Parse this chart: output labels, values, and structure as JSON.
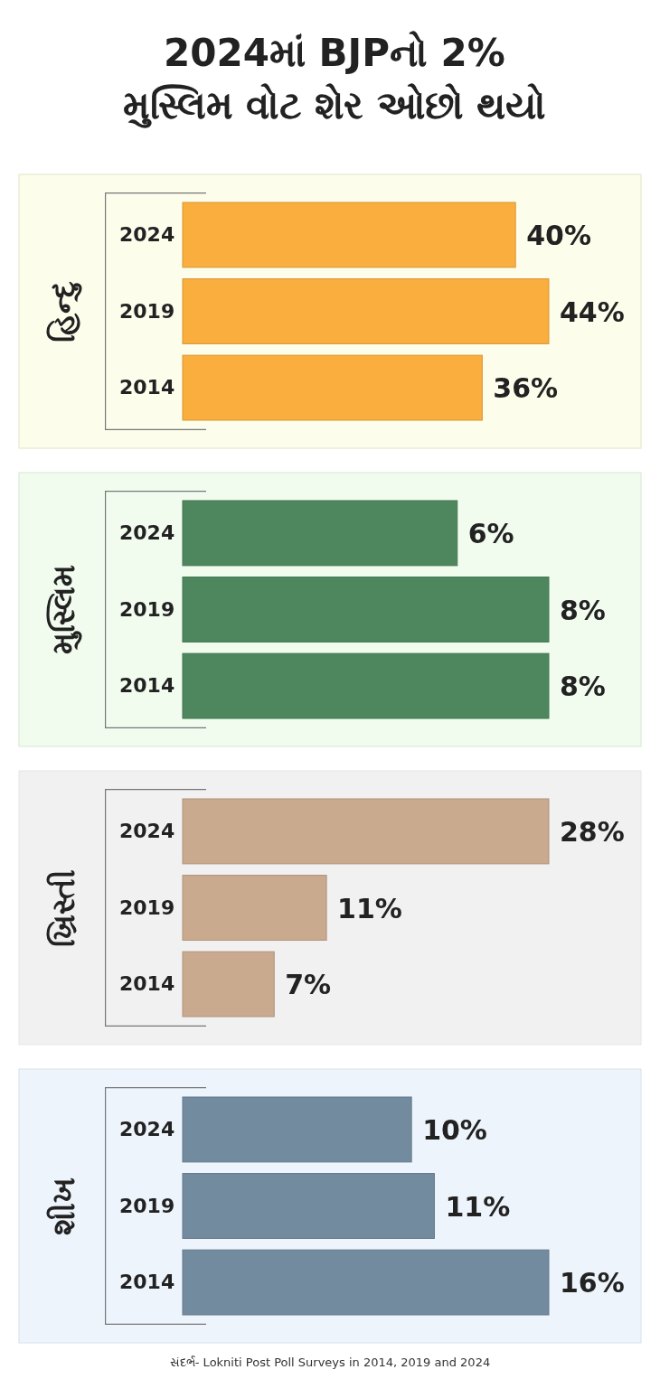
{
  "chart_data": [
    {
      "type": "bar",
      "orientation": "horizontal",
      "title": "2024માં BJPનો 2% મુસ્લિમ વોટ શેર ઓછો થયો",
      "ylabel": "હિન્દુ",
      "categories": [
        "2024",
        "2019",
        "2014"
      ],
      "values": [
        40,
        44,
        36
      ],
      "value_labels": [
        "40%",
        "44%",
        "36%"
      ],
      "color": "#f9ae3e"
    },
    {
      "type": "bar",
      "orientation": "horizontal",
      "ylabel": "મુસ્લિમ",
      "categories": [
        "2024",
        "2019",
        "2014"
      ],
      "values": [
        6,
        8,
        8
      ],
      "value_labels": [
        "6%",
        "8%",
        "8%"
      ],
      "color": "#4e875e"
    },
    {
      "type": "bar",
      "orientation": "horizontal",
      "ylabel": "ખ્રિસ્તી",
      "categories": [
        "2024",
        "2019",
        "2014"
      ],
      "values": [
        28,
        11,
        7
      ],
      "value_labels": [
        "28%",
        "11%",
        "7%"
      ],
      "color": "#c9aa8e"
    },
    {
      "type": "bar",
      "orientation": "horizontal",
      "ylabel": "શીખ",
      "categories": [
        "2024",
        "2019",
        "2014"
      ],
      "values": [
        10,
        11,
        16
      ],
      "value_labels": [
        "10%",
        "11%",
        "16%"
      ],
      "color": "#738b9f",
      "annotations": [
        "સંદર્ભ- Lokniti Post Poll Surveys in 2014, 2019 and 2024"
      ]
    }
  ]
}
